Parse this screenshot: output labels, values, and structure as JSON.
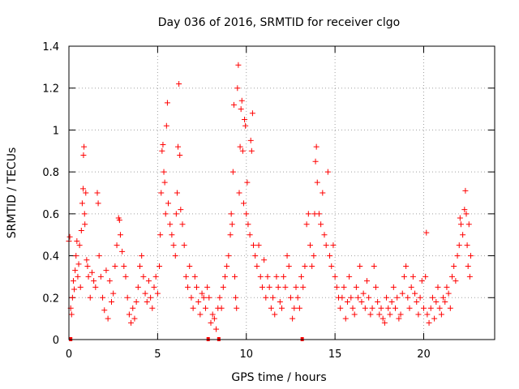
{
  "chart_data": {
    "type": "scatter",
    "title": "Day 036 of 2016, SRMTID for receiver clgo",
    "xlabel": "GPS time / hours",
    "ylabel": "SRMTID / TECUs",
    "xlim": [
      0,
      24
    ],
    "ylim": [
      0,
      1.4
    ],
    "xticks": [
      0,
      5,
      10,
      15,
      20
    ],
    "xtick_labels": [
      "0",
      "5",
      "10",
      "15",
      "20"
    ],
    "yticks": [
      0,
      0.2,
      0.4,
      0.6,
      0.8,
      1,
      1.2,
      1.4
    ],
    "ytick_labels": [
      "0",
      "0.2",
      "0.4",
      "0.6",
      "0.8",
      "1",
      "1.2",
      "1.4"
    ],
    "grid": true,
    "marker": "plus",
    "series": [
      {
        "name": "SRMTID",
        "color": "#ff0000",
        "points": [
          [
            0.0,
            0.47
          ],
          [
            0.05,
            0.49
          ],
          [
            0.1,
            0.15
          ],
          [
            0.15,
            0.12
          ],
          [
            0.2,
            0.2
          ],
          [
            0.25,
            0.28
          ],
          [
            0.3,
            0.24
          ],
          [
            0.35,
            0.33
          ],
          [
            0.4,
            0.4
          ],
          [
            0.45,
            0.47
          ],
          [
            0.5,
            0.3
          ],
          [
            0.55,
            0.36
          ],
          [
            0.6,
            0.45
          ],
          [
            0.65,
            0.25
          ],
          [
            0.7,
            0.52
          ],
          [
            0.75,
            0.65
          ],
          [
            0.8,
            0.72
          ],
          [
            0.82,
            0.88
          ],
          [
            0.85,
            0.92
          ],
          [
            0.88,
            0.6
          ],
          [
            0.9,
            0.55
          ],
          [
            0.95,
            0.7
          ],
          [
            1.0,
            0.38
          ],
          [
            1.05,
            0.35
          ],
          [
            1.1,
            0.3
          ],
          [
            1.2,
            0.2
          ],
          [
            1.3,
            0.32
          ],
          [
            1.4,
            0.28
          ],
          [
            1.5,
            0.25
          ],
          [
            1.6,
            0.7
          ],
          [
            1.65,
            0.65
          ],
          [
            1.7,
            0.4
          ],
          [
            1.8,
            0.3
          ],
          [
            1.9,
            0.2
          ],
          [
            2.0,
            0.14
          ],
          [
            2.1,
            0.33
          ],
          [
            2.2,
            0.1
          ],
          [
            2.3,
            0.28
          ],
          [
            2.4,
            0.18
          ],
          [
            2.5,
            0.22
          ],
          [
            2.6,
            0.35
          ],
          [
            2.7,
            0.45
          ],
          [
            2.8,
            0.58
          ],
          [
            2.85,
            0.57
          ],
          [
            2.9,
            0.5
          ],
          [
            3.0,
            0.42
          ],
          [
            3.1,
            0.35
          ],
          [
            3.2,
            0.3
          ],
          [
            3.3,
            0.2
          ],
          [
            3.4,
            0.12
          ],
          [
            3.5,
            0.08
          ],
          [
            3.6,
            0.15
          ],
          [
            3.7,
            0.1
          ],
          [
            3.8,
            0.18
          ],
          [
            3.9,
            0.25
          ],
          [
            4.0,
            0.35
          ],
          [
            4.1,
            0.4
          ],
          [
            4.2,
            0.3
          ],
          [
            4.3,
            0.22
          ],
          [
            4.4,
            0.18
          ],
          [
            4.5,
            0.28
          ],
          [
            4.6,
            0.2
          ],
          [
            4.7,
            0.15
          ],
          [
            4.8,
            0.25
          ],
          [
            4.9,
            0.3
          ],
          [
            5.0,
            0.22
          ],
          [
            5.1,
            0.35
          ],
          [
            5.15,
            0.5
          ],
          [
            5.2,
            0.7
          ],
          [
            5.25,
            0.9
          ],
          [
            5.3,
            0.93
          ],
          [
            5.35,
            0.8
          ],
          [
            5.4,
            0.75
          ],
          [
            5.45,
            0.6
          ],
          [
            5.5,
            1.02
          ],
          [
            5.55,
            1.13
          ],
          [
            5.6,
            0.65
          ],
          [
            5.7,
            0.55
          ],
          [
            5.8,
            0.5
          ],
          [
            5.9,
            0.45
          ],
          [
            6.0,
            0.4
          ],
          [
            6.05,
            0.6
          ],
          [
            6.1,
            0.7
          ],
          [
            6.15,
            0.92
          ],
          [
            6.2,
            1.22
          ],
          [
            6.25,
            0.88
          ],
          [
            6.3,
            0.62
          ],
          [
            6.4,
            0.55
          ],
          [
            6.5,
            0.45
          ],
          [
            6.6,
            0.3
          ],
          [
            6.7,
            0.25
          ],
          [
            6.8,
            0.35
          ],
          [
            6.9,
            0.2
          ],
          [
            7.0,
            0.15
          ],
          [
            7.1,
            0.3
          ],
          [
            7.2,
            0.25
          ],
          [
            7.3,
            0.18
          ],
          [
            7.4,
            0.12
          ],
          [
            7.5,
            0.22
          ],
          [
            7.6,
            0.2
          ],
          [
            7.7,
            0.15
          ],
          [
            7.8,
            0.25
          ],
          [
            7.9,
            0.2
          ],
          [
            8.0,
            0.08
          ],
          [
            8.1,
            0.12
          ],
          [
            8.2,
            0.1
          ],
          [
            8.3,
            0.05
          ],
          [
            8.4,
            0.15
          ],
          [
            8.5,
            0.2
          ],
          [
            8.6,
            0.15
          ],
          [
            8.7,
            0.25
          ],
          [
            8.8,
            0.3
          ],
          [
            8.9,
            0.35
          ],
          [
            9.0,
            0.4
          ],
          [
            9.1,
            0.5
          ],
          [
            9.15,
            0.6
          ],
          [
            9.2,
            0.55
          ],
          [
            9.25,
            0.8
          ],
          [
            9.3,
            1.12
          ],
          [
            9.35,
            0.3
          ],
          [
            9.4,
            0.2
          ],
          [
            9.45,
            0.15
          ],
          [
            9.5,
            1.2
          ],
          [
            9.55,
            1.31
          ],
          [
            9.6,
            0.7
          ],
          [
            9.65,
            0.92
          ],
          [
            9.7,
            1.1
          ],
          [
            9.75,
            1.14
          ],
          [
            9.8,
            0.9
          ],
          [
            9.85,
            0.65
          ],
          [
            9.9,
            1.05
          ],
          [
            9.95,
            1.02
          ],
          [
            10.0,
            0.6
          ],
          [
            10.05,
            0.75
          ],
          [
            10.1,
            0.55
          ],
          [
            10.2,
            0.5
          ],
          [
            10.25,
            0.95
          ],
          [
            10.3,
            0.9
          ],
          [
            10.35,
            1.08
          ],
          [
            10.4,
            0.45
          ],
          [
            10.5,
            0.4
          ],
          [
            10.6,
            0.35
          ],
          [
            10.7,
            0.45
          ],
          [
            10.8,
            0.3
          ],
          [
            10.9,
            0.25
          ],
          [
            11.0,
            0.38
          ],
          [
            11.1,
            0.2
          ],
          [
            11.2,
            0.3
          ],
          [
            11.3,
            0.25
          ],
          [
            11.4,
            0.15
          ],
          [
            11.5,
            0.2
          ],
          [
            11.6,
            0.12
          ],
          [
            11.7,
            0.3
          ],
          [
            11.8,
            0.25
          ],
          [
            11.9,
            0.18
          ],
          [
            12.0,
            0.15
          ],
          [
            12.1,
            0.3
          ],
          [
            12.2,
            0.25
          ],
          [
            12.3,
            0.4
          ],
          [
            12.4,
            0.35
          ],
          [
            12.5,
            0.2
          ],
          [
            12.6,
            0.1
          ],
          [
            12.7,
            0.15
          ],
          [
            12.8,
            0.25
          ],
          [
            12.9,
            0.2
          ],
          [
            13.0,
            0.15
          ],
          [
            13.1,
            0.3
          ],
          [
            13.2,
            0.25
          ],
          [
            13.3,
            0.35
          ],
          [
            13.4,
            0.55
          ],
          [
            13.5,
            0.6
          ],
          [
            13.6,
            0.45
          ],
          [
            13.7,
            0.35
          ],
          [
            13.8,
            0.4
          ],
          [
            13.85,
            0.6
          ],
          [
            13.9,
            0.85
          ],
          [
            13.95,
            0.92
          ],
          [
            14.0,
            0.75
          ],
          [
            14.1,
            0.6
          ],
          [
            14.2,
            0.55
          ],
          [
            14.3,
            0.7
          ],
          [
            14.4,
            0.5
          ],
          [
            14.5,
            0.45
          ],
          [
            14.6,
            0.8
          ],
          [
            14.7,
            0.4
          ],
          [
            14.8,
            0.35
          ],
          [
            14.9,
            0.45
          ],
          [
            15.0,
            0.3
          ],
          [
            15.1,
            0.25
          ],
          [
            15.2,
            0.2
          ],
          [
            15.3,
            0.15
          ],
          [
            15.4,
            0.2
          ],
          [
            15.5,
            0.25
          ],
          [
            15.6,
            0.1
          ],
          [
            15.7,
            0.18
          ],
          [
            15.8,
            0.3
          ],
          [
            15.9,
            0.2
          ],
          [
            16.0,
            0.15
          ],
          [
            16.1,
            0.12
          ],
          [
            16.2,
            0.25
          ],
          [
            16.3,
            0.2
          ],
          [
            16.4,
            0.35
          ],
          [
            16.5,
            0.18
          ],
          [
            16.6,
            0.22
          ],
          [
            16.7,
            0.15
          ],
          [
            16.8,
            0.28
          ],
          [
            16.9,
            0.2
          ],
          [
            17.0,
            0.12
          ],
          [
            17.1,
            0.15
          ],
          [
            17.2,
            0.35
          ],
          [
            17.3,
            0.25
          ],
          [
            17.4,
            0.18
          ],
          [
            17.5,
            0.12
          ],
          [
            17.6,
            0.15
          ],
          [
            17.7,
            0.1
          ],
          [
            17.8,
            0.08
          ],
          [
            17.9,
            0.2
          ],
          [
            18.0,
            0.15
          ],
          [
            18.1,
            0.12
          ],
          [
            18.2,
            0.18
          ],
          [
            18.3,
            0.25
          ],
          [
            18.4,
            0.15
          ],
          [
            18.5,
            0.2
          ],
          [
            18.6,
            0.1
          ],
          [
            18.7,
            0.12
          ],
          [
            18.8,
            0.22
          ],
          [
            18.9,
            0.3
          ],
          [
            19.0,
            0.35
          ],
          [
            19.1,
            0.2
          ],
          [
            19.2,
            0.15
          ],
          [
            19.3,
            0.25
          ],
          [
            19.4,
            0.3
          ],
          [
            19.5,
            0.22
          ],
          [
            19.6,
            0.18
          ],
          [
            19.7,
            0.12
          ],
          [
            19.8,
            0.2
          ],
          [
            19.9,
            0.28
          ],
          [
            20.0,
            0.15
          ],
          [
            20.1,
            0.3
          ],
          [
            20.15,
            0.51
          ],
          [
            20.2,
            0.12
          ],
          [
            20.3,
            0.08
          ],
          [
            20.4,
            0.15
          ],
          [
            20.5,
            0.2
          ],
          [
            20.6,
            0.1
          ],
          [
            20.7,
            0.18
          ],
          [
            20.8,
            0.25
          ],
          [
            20.9,
            0.15
          ],
          [
            21.0,
            0.12
          ],
          [
            21.1,
            0.2
          ],
          [
            21.2,
            0.18
          ],
          [
            21.3,
            0.25
          ],
          [
            21.4,
            0.22
          ],
          [
            21.5,
            0.15
          ],
          [
            21.6,
            0.3
          ],
          [
            21.7,
            0.35
          ],
          [
            21.8,
            0.28
          ],
          [
            21.9,
            0.4
          ],
          [
            22.0,
            0.45
          ],
          [
            22.05,
            0.58
          ],
          [
            22.1,
            0.55
          ],
          [
            22.2,
            0.5
          ],
          [
            22.3,
            0.62
          ],
          [
            22.35,
            0.71
          ],
          [
            22.4,
            0.6
          ],
          [
            22.45,
            0.45
          ],
          [
            22.5,
            0.35
          ],
          [
            22.55,
            0.55
          ],
          [
            22.6,
            0.3
          ],
          [
            22.65,
            0.4
          ]
        ]
      }
    ],
    "flag_markers": [
      0.1,
      7.85,
      8.45,
      13.15
    ]
  }
}
